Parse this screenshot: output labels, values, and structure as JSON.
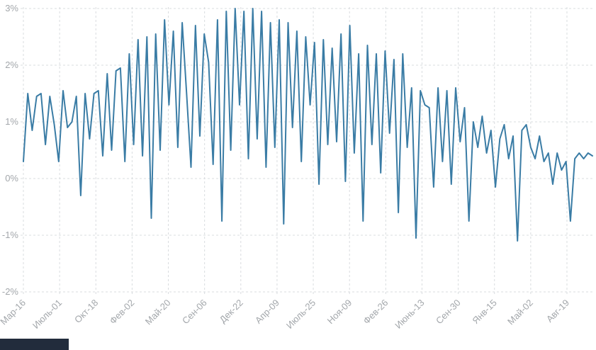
{
  "chart_data": {
    "type": "line",
    "title": "",
    "xlabel": "",
    "ylabel": "",
    "ylim": [
      -2,
      3
    ],
    "grid": "dashed horizontal and vertical",
    "legend": "none",
    "line_color": "#3a7ca5",
    "axis_text_color": "#a3a7ab",
    "grid_color": "#d9dcdf",
    "y_tick_labels": [
      "3%",
      "2%",
      "1%",
      "0%",
      "-1%",
      "-2%"
    ],
    "y_tick_values": [
      3,
      2,
      1,
      0,
      -1,
      -2
    ],
    "x_tick_labels": [
      "Мар-16",
      "Июль-01",
      "Окт-18",
      "Фев-02",
      "Май-20",
      "Сен-06",
      "Дек-22",
      "Апр-09",
      "Июль-25",
      "Ноя-09",
      "Фев-26",
      "Июнь-13",
      "Сен-30",
      "Янв-15",
      "Май-02",
      "Авг-19"
    ],
    "values": [
      0.3,
      1.5,
      0.85,
      1.45,
      1.5,
      0.6,
      1.45,
      0.95,
      0.3,
      1.55,
      0.9,
      1.0,
      1.45,
      -0.3,
      1.5,
      0.7,
      1.5,
      1.55,
      0.4,
      1.85,
      0.5,
      1.9,
      1.95,
      0.3,
      2.2,
      0.6,
      2.45,
      0.4,
      2.5,
      -0.7,
      2.55,
      0.5,
      2.8,
      1.3,
      2.6,
      0.55,
      2.75,
      1.5,
      0.2,
      2.7,
      0.75,
      2.55,
      2.05,
      0.25,
      2.8,
      -0.75,
      2.95,
      0.5,
      3.0,
      1.3,
      2.95,
      0.35,
      3.0,
      0.7,
      2.95,
      0.2,
      2.75,
      0.55,
      2.8,
      -0.8,
      2.75,
      0.9,
      2.6,
      0.3,
      2.5,
      1.3,
      2.4,
      -0.1,
      2.45,
      0.6,
      2.3,
      0.65,
      2.55,
      -0.05,
      2.7,
      0.45,
      2.2,
      -0.75,
      2.35,
      0.6,
      2.2,
      0.1,
      2.25,
      0.8,
      2.1,
      -0.6,
      2.2,
      0.55,
      1.6,
      -1.05,
      1.55,
      1.3,
      1.25,
      -0.15,
      1.6,
      0.3,
      1.55,
      -0.1,
      1.6,
      0.65,
      1.25,
      -0.75,
      1.0,
      0.55,
      1.1,
      0.45,
      0.85,
      -0.15,
      0.7,
      0.95,
      0.35,
      0.75,
      -1.1,
      0.85,
      0.95,
      0.55,
      0.35,
      0.75,
      0.3,
      0.45,
      -0.1,
      0.45,
      0.15,
      0.3,
      -0.75,
      0.35,
      0.45,
      0.35,
      0.45,
      0.4
    ]
  }
}
